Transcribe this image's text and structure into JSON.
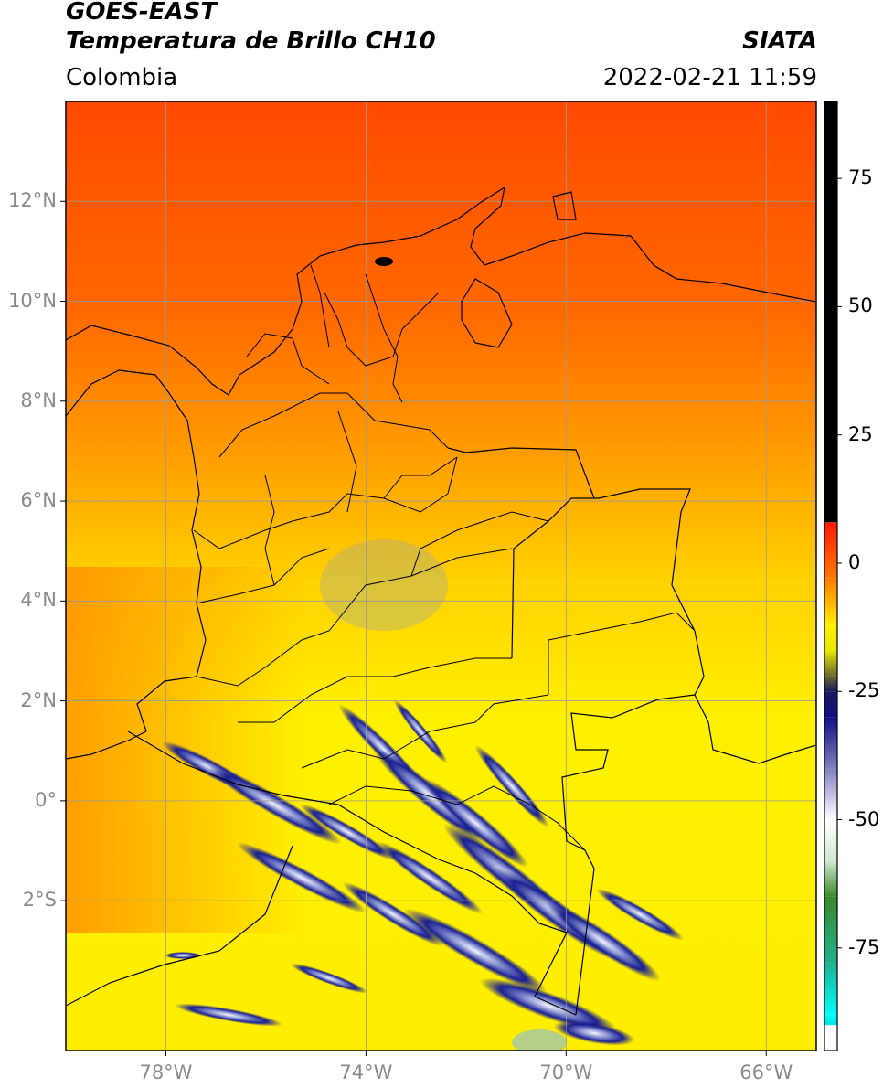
{
  "header": {
    "satellite": "GOES-EAST",
    "product": "Temperatura de Brillo CH10",
    "agency": "SIATA",
    "region": "Colombia",
    "timestamp": "2022-02-21 11:59"
  },
  "map": {
    "lon_range": [
      -80,
      -65
    ],
    "lat_range": [
      -5,
      14
    ],
    "lat_ticks": [
      {
        "value": 12,
        "label": "12°N"
      },
      {
        "value": 10,
        "label": "10°N"
      },
      {
        "value": 8,
        "label": "8°N"
      },
      {
        "value": 6,
        "label": "6°N"
      },
      {
        "value": 4,
        "label": "4°N"
      },
      {
        "value": 2,
        "label": "2°N"
      },
      {
        "value": 0,
        "label": "0°"
      },
      {
        "value": -2,
        "label": "2°S"
      }
    ],
    "lon_ticks": [
      {
        "value": -78,
        "label": "78°W"
      },
      {
        "value": -74,
        "label": "74°W"
      },
      {
        "value": -70,
        "label": "70°W"
      },
      {
        "value": -66,
        "label": "66°W"
      }
    ]
  },
  "colorbar": {
    "range": [
      -95,
      90
    ],
    "ticks": [
      {
        "value": 75,
        "label": "75"
      },
      {
        "value": 50,
        "label": "50"
      },
      {
        "value": 25,
        "label": "25"
      },
      {
        "value": 0,
        "label": "0"
      },
      {
        "value": -25,
        "label": "-25"
      },
      {
        "value": -50,
        "label": "-50"
      },
      {
        "value": -75,
        "label": "-75"
      }
    ],
    "stops": [
      {
        "value": 90,
        "color": "#000000"
      },
      {
        "value": 8,
        "color": "#000000"
      },
      {
        "value": 7.9,
        "color": "#ff1a00"
      },
      {
        "value": -3,
        "color": "#ff7a00"
      },
      {
        "value": -12,
        "color": "#ffee00"
      },
      {
        "value": -17,
        "color": "#e8e800"
      },
      {
        "value": -22,
        "color": "#6a6a30"
      },
      {
        "value": -25,
        "color": "#1a1a60"
      },
      {
        "value": -30,
        "color": "#101085"
      },
      {
        "value": -40,
        "color": "#8080c0"
      },
      {
        "value": -50,
        "color": "#ffffff"
      },
      {
        "value": -58,
        "color": "#d0e8d0"
      },
      {
        "value": -65,
        "color": "#3a8a2a"
      },
      {
        "value": -78,
        "color": "#20b090"
      },
      {
        "value": -88,
        "color": "#00ffff"
      },
      {
        "value": -90,
        "color": "#00e0e0"
      },
      {
        "value": -90.1,
        "color": "#ffffff"
      },
      {
        "value": -95,
        "color": "#ffffff"
      }
    ]
  }
}
